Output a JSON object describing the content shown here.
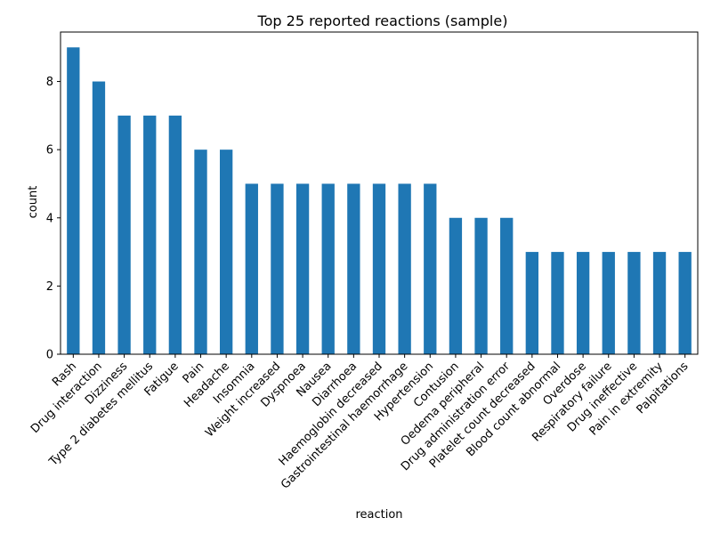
{
  "chart_data": {
    "type": "bar",
    "title": "Top 25 reported reactions (sample)",
    "xlabel": "reaction",
    "ylabel": "count",
    "ylim": [
      0,
      9.45
    ],
    "yticks": [
      0,
      2,
      4,
      6,
      8
    ],
    "bar_color": "#1f77b4",
    "grid": false,
    "legend": "none",
    "categories": [
      "Rash",
      "Drug interaction",
      "Dizziness",
      "Type 2 diabetes mellitus",
      "Fatigue",
      "Pain",
      "Headache",
      "Insomnia",
      "Weight increased",
      "Dyspnoea",
      "Nausea",
      "Diarrhoea",
      "Haemoglobin decreased",
      "Gastrointestinal haemorrhage",
      "Hypertension",
      "Contusion",
      "Oedema peripheral",
      "Drug administration error",
      "Platelet count decreased",
      "Blood count abnormal",
      "Overdose",
      "Respiratory failure",
      "Drug ineffective",
      "Pain in extremity",
      "Palpitations"
    ],
    "values": [
      9,
      8,
      7,
      7,
      7,
      6,
      6,
      5,
      5,
      5,
      5,
      5,
      5,
      5,
      5,
      4,
      4,
      4,
      3,
      3,
      3,
      3,
      3,
      3,
      3
    ]
  }
}
